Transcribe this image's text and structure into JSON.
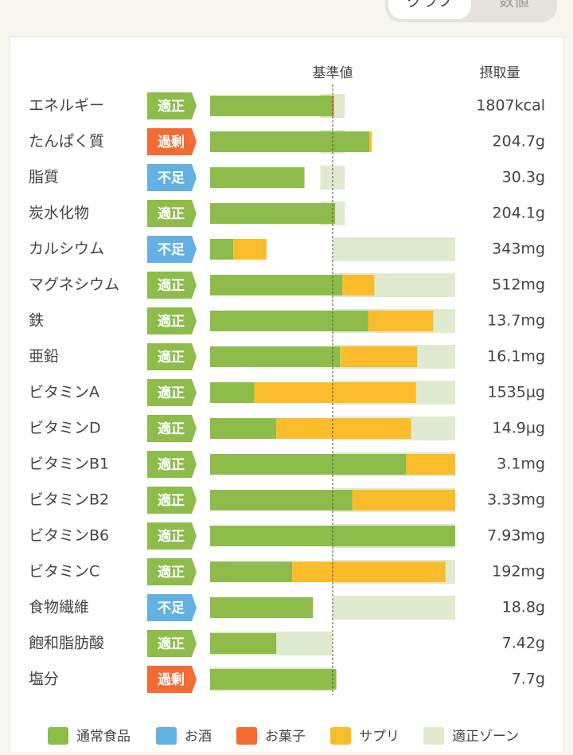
{
  "tabs": [
    "グラフ",
    "数値"
  ],
  "chart_data": {
    "type": "bar",
    "reference": {
      "label": "基準値",
      "value": 100
    },
    "intake_header": "摂取量",
    "categories": [
      "エネルギー",
      "たんぱく質",
      "脂質",
      "炭水化物",
      "カルシウム",
      "マグネシウム",
      "鉄",
      "亜鉛",
      "ビタミンA",
      "ビタミンD",
      "ビタミンB1",
      "ビタミンB2",
      "ビタミンB6",
      "ビタミンC",
      "食物繊維",
      "飽和脂肪酸",
      "塩分"
    ],
    "status": [
      "適正",
      "過剰",
      "不足",
      "適正",
      "不足",
      "適正",
      "適正",
      "適正",
      "適正",
      "適正",
      "適正",
      "適正",
      "適正",
      "適正",
      "不足",
      "適正",
      "過剰"
    ],
    "status_colors": {
      "適正": "#8dbc4b",
      "過剰": "#f46a33",
      "不足": "#63b1e3"
    },
    "intake": [
      "1807kcal",
      "204.7g",
      "30.3g",
      "204.1g",
      "343mg",
      "512mg",
      "13.7mg",
      "16.1mg",
      "1535µg",
      "14.9µg",
      "3.1mg",
      "3.33mg",
      "7.93mg",
      "192mg",
      "18.8g",
      "7.42g",
      "7.7g"
    ],
    "xlim": [
      0,
      200
    ],
    "series": [
      {
        "name": "通常食品",
        "color": "#8dbc4b",
        "values": [
          100,
          130,
          77,
          102,
          19,
          108,
          129,
          106,
          36,
          54,
          160,
          116,
          200,
          67,
          84,
          54,
          103
        ]
      },
      {
        "name": "お酒",
        "color": "#63b1e3",
        "values": [
          0,
          0,
          0,
          0,
          0,
          0,
          0,
          0,
          0,
          0,
          0,
          0,
          0,
          0,
          0,
          0,
          0
        ]
      },
      {
        "name": "お菓子",
        "color": "#f46a33",
        "values": [
          1,
          0,
          0,
          0,
          0,
          0,
          0,
          0,
          0,
          0,
          0,
          0,
          0,
          0,
          0,
          0,
          0
        ]
      },
      {
        "name": "サプリ",
        "color": "#fbbc2c",
        "values": [
          0,
          2,
          0,
          0,
          27,
          26,
          53,
          63,
          132,
          110,
          40,
          84,
          0,
          125,
          0,
          0,
          0
        ]
      }
    ],
    "zones": {
      "name": "適正ゾーン",
      "color": "#dfeacf",
      "low": [
        90,
        90,
        90,
        90,
        100,
        100,
        100,
        100,
        100,
        100,
        100,
        100,
        100,
        100,
        100,
        0,
        0
      ],
      "high": [
        110,
        110,
        110,
        110,
        200,
        200,
        200,
        200,
        200,
        200,
        200,
        200,
        200,
        200,
        200,
        100,
        100
      ]
    }
  }
}
